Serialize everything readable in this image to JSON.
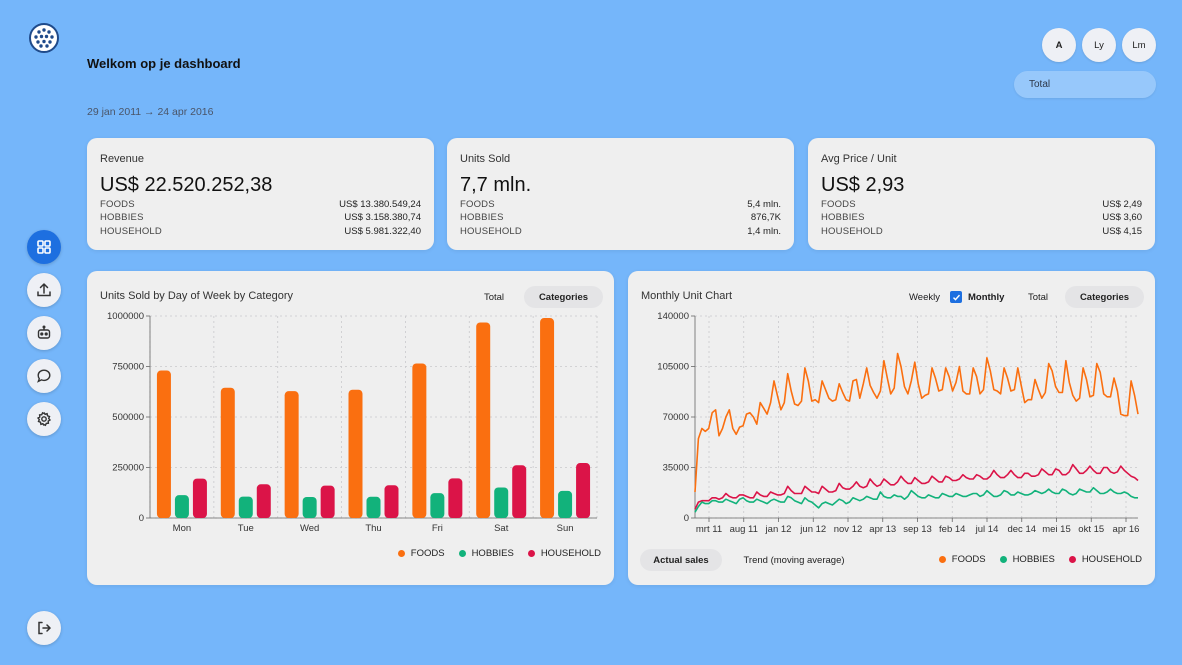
{
  "app": {
    "title": "Welkom op je dashboard",
    "date_range": "29 jan 2011 → 24 apr 2016"
  },
  "colors": {
    "foods": "#fa6f10",
    "hobbies": "#12b27b",
    "household": "#db1448",
    "accent": "#1d6fe0",
    "background": "#75b6fa"
  },
  "sidebar": {
    "logo_icon": "dotted-globe-icon",
    "items": [
      {
        "name": "dashboard",
        "icon": "grid-icon",
        "active": true
      },
      {
        "name": "upload",
        "icon": "upload-icon",
        "active": false
      },
      {
        "name": "bot",
        "icon": "robot-icon",
        "active": false
      },
      {
        "name": "chat",
        "icon": "chat-bubble-icon",
        "active": false
      },
      {
        "name": "settings",
        "icon": "gear-icon",
        "active": false
      }
    ],
    "logout_icon": "logout-icon"
  },
  "range_buttons": [
    {
      "label": "A",
      "selected": true
    },
    {
      "label": "Ly",
      "selected": false
    },
    {
      "label": "Lm",
      "selected": false
    }
  ],
  "store_select": {
    "value": "Total"
  },
  "kpis": [
    {
      "label": "Revenue",
      "value": "US$ 22.520.252,38",
      "rows": [
        {
          "cat": "FOODS",
          "val": "US$ 13.380.549,24"
        },
        {
          "cat": "HOBBIES",
          "val": "US$ 3.158.380,74"
        },
        {
          "cat": "HOUSEHOLD",
          "val": "US$ 5.981.322,40"
        }
      ]
    },
    {
      "label": "Units Sold",
      "value": "7,7 mln.",
      "rows": [
        {
          "cat": "FOODS",
          "val": "5,4 mln."
        },
        {
          "cat": "HOBBIES",
          "val": "876,7K"
        },
        {
          "cat": "HOUSEHOLD",
          "val": "1,4 mln."
        }
      ]
    },
    {
      "label": "Avg Price / Unit",
      "value": "US$ 2,93",
      "rows": [
        {
          "cat": "FOODS",
          "val": "US$ 2,49"
        },
        {
          "cat": "HOBBIES",
          "val": "US$ 3,60"
        },
        {
          "cat": "HOUSEHOLD",
          "val": "US$ 4,15"
        }
      ]
    }
  ],
  "weekday_card": {
    "title": "Units Sold by Day of Week by Category",
    "toggle": {
      "total": "Total",
      "categories": "Categories"
    },
    "legend": [
      "FOODS",
      "HOBBIES",
      "HOUSEHOLD"
    ]
  },
  "monthly_card": {
    "title": "Monthly Unit Chart",
    "weekly_label": "Weekly",
    "monthly_label": "Monthly",
    "weekly_checked": false,
    "monthly_checked": true,
    "toggle": {
      "total": "Total",
      "categories": "Categories"
    },
    "mode_buttons": {
      "actual": "Actual sales",
      "trend": "Trend (moving average)"
    },
    "legend": [
      "FOODS",
      "HOBBIES",
      "HOUSEHOLD"
    ]
  },
  "chart_data": [
    {
      "type": "bar",
      "title": "Units Sold by Day of Week by Category",
      "categories": [
        "Mon",
        "Tue",
        "Wed",
        "Thu",
        "Fri",
        "Sat",
        "Sun"
      ],
      "series": [
        {
          "name": "FOODS",
          "values": [
            730000,
            645000,
            628000,
            635000,
            765000,
            968000,
            990000
          ]
        },
        {
          "name": "HOBBIES",
          "values": [
            113000,
            106000,
            104000,
            105000,
            123000,
            151000,
            134000
          ]
        },
        {
          "name": "HOUSEHOLD",
          "values": [
            195000,
            167000,
            160000,
            162000,
            196000,
            261000,
            272000
          ]
        }
      ],
      "ylim": [
        0,
        1000000
      ],
      "yticks": [
        "0",
        "250000",
        "500000",
        "750000",
        "1000000"
      ],
      "ytick_values": [
        0,
        250000,
        500000,
        750000,
        1000000
      ],
      "grid": true,
      "legend": "bottom-right"
    },
    {
      "type": "line",
      "title": "Monthly Unit Chart",
      "xtick_labels": [
        "mrt 11",
        "aug 11",
        "jan 12",
        "jun 12",
        "nov 12",
        "apr 13",
        "sep 13",
        "feb 14",
        "jul 14",
        "dec 14",
        "mei 15",
        "okt 15",
        "apr 16"
      ],
      "ylim": [
        0,
        140000
      ],
      "yticks": [
        "0",
        "35000",
        "70000",
        "105000",
        "140000"
      ],
      "ytick_values": [
        0,
        35000,
        70000,
        105000,
        140000
      ],
      "grid": true,
      "legend": "bottom-right",
      "series": [
        {
          "name": "FOODS",
          "values": [
            18000,
            55000,
            62000,
            60000,
            62000,
            73000,
            75000,
            57000,
            62000,
            70000,
            75000,
            62000,
            58000,
            63000,
            64000,
            72000,
            73000,
            70000,
            65000,
            80000,
            76000,
            72000,
            80000,
            95000,
            85000,
            75000,
            80000,
            100000,
            88000,
            79000,
            78000,
            81000,
            104000,
            95000,
            81000,
            82000,
            80000,
            95000,
            89000,
            83000,
            81000,
            82000,
            93000,
            87000,
            82000,
            81000,
            95000,
            96000,
            83000,
            93000,
            104000,
            92000,
            87000,
            83000,
            88000,
            109000,
            97000,
            86000,
            90000,
            114000,
            105000,
            91000,
            86000,
            95000,
            108000,
            93000,
            83000,
            85000,
            86000,
            104000,
            97000,
            88000,
            89000,
            104000,
            98000,
            88000,
            94000,
            105000,
            88000,
            86000,
            86000,
            104000,
            98000,
            86000,
            89000,
            111000,
            102000,
            89000,
            88000,
            86000,
            104000,
            97000,
            88000,
            89000,
            104000,
            92000,
            80000,
            82000,
            82000,
            96000,
            89000,
            83000,
            87000,
            107000,
            102000,
            91000,
            87000,
            87000,
            109000,
            94000,
            85000,
            81000,
            83000,
            104000,
            96000,
            84000,
            85000,
            107000,
            101000,
            86000,
            84000,
            84000,
            97000,
            88000,
            72000,
            71000,
            71000,
            95000,
            85000,
            72000
          ]
        },
        {
          "name": "HOBBIES",
          "values": [
            4000,
            8000,
            11000,
            10000,
            10000,
            12000,
            12000,
            11000,
            11000,
            13000,
            12000,
            11000,
            10000,
            13000,
            14000,
            12000,
            11000,
            11000,
            13000,
            12000,
            11000,
            10000,
            12000,
            13000,
            12000,
            11000,
            11000,
            15000,
            14000,
            12000,
            11000,
            10000,
            14000,
            12000,
            11000,
            9000,
            7000,
            10000,
            11000,
            10000,
            9000,
            11000,
            13000,
            12000,
            10000,
            11000,
            14000,
            13000,
            12000,
            13000,
            15000,
            14000,
            13000,
            13000,
            18000,
            15000,
            14000,
            14000,
            16000,
            15000,
            15000,
            13000,
            15000,
            19000,
            17000,
            15000,
            14000,
            14000,
            16000,
            15000,
            14000,
            14000,
            17000,
            16000,
            15000,
            15000,
            17000,
            16000,
            15000,
            15000,
            16000,
            17000,
            17000,
            15000,
            16000,
            19000,
            17000,
            15000,
            15000,
            16000,
            19000,
            18000,
            16000,
            16000,
            18000,
            17000,
            16000,
            16000,
            17000,
            19000,
            18000,
            17000,
            18000,
            20000,
            18000,
            17000,
            17000,
            20000,
            19000,
            17000,
            16000,
            17000,
            20000,
            19000,
            18000,
            18000,
            21000,
            19000,
            17000,
            17000,
            18000,
            20000,
            18000,
            17000,
            17000,
            18000,
            17000,
            15000,
            14000,
            14000
          ]
        },
        {
          "name": "HOUSEHOLD",
          "values": [
            6000,
            11000,
            12000,
            12000,
            12000,
            14000,
            14000,
            13000,
            14000,
            17000,
            15000,
            14000,
            14000,
            16000,
            16000,
            15000,
            14000,
            14000,
            18000,
            16000,
            15000,
            15000,
            18000,
            17000,
            16000,
            16000,
            17000,
            22000,
            19000,
            17000,
            17000,
            17000,
            22000,
            20000,
            18000,
            18000,
            17000,
            22000,
            20000,
            18000,
            18000,
            19000,
            24000,
            21000,
            20000,
            20000,
            22000,
            25000,
            22000,
            21000,
            22000,
            27000,
            24000,
            22000,
            23000,
            27000,
            25000,
            23000,
            23000,
            25000,
            29000,
            26000,
            24000,
            24000,
            28000,
            26000,
            24000,
            24000,
            25000,
            29000,
            27000,
            25000,
            25000,
            29000,
            28000,
            26000,
            26000,
            27000,
            30000,
            28000,
            27000,
            27000,
            30000,
            29000,
            27000,
            27000,
            29000,
            33000,
            30000,
            28000,
            28000,
            30000,
            33000,
            30000,
            28000,
            28000,
            31000,
            31000,
            29000,
            29000,
            30000,
            34000,
            32000,
            30000,
            30000,
            34000,
            33000,
            30000,
            30000,
            32000,
            37000,
            34000,
            31000,
            31000,
            33000,
            36000,
            33000,
            31000,
            31000,
            35000,
            35000,
            32000,
            31000,
            32000,
            36000,
            33000,
            31000,
            29000,
            28000,
            26000
          ]
        }
      ]
    }
  ]
}
